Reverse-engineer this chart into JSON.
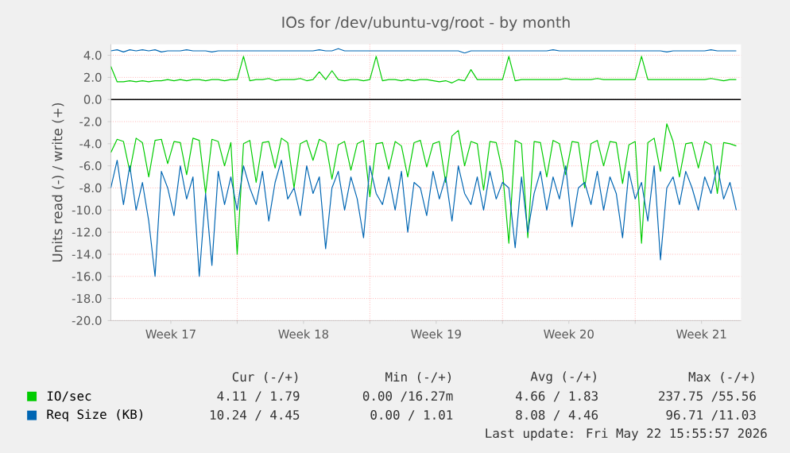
{
  "chart_data": {
    "type": "line",
    "title": "IOs for /dev/ubuntu-vg/root - by month",
    "ylabel": "Units read (-) / write (+)",
    "xlim": [
      "2026-04-20T08:00",
      "2026-05-23T14:00"
    ],
    "ylim": [
      -20,
      5
    ],
    "xticks": [
      {
        "value": "2026-04-23T12:00",
        "label": "Week 17"
      },
      {
        "value": "2026-04-27T00:00",
        "label": null
      },
      {
        "value": "2026-04-30T12:00",
        "label": "Week 18"
      },
      {
        "value": "2026-05-04T00:00",
        "label": null
      },
      {
        "value": "2026-05-07T12:00",
        "label": "Week 19"
      },
      {
        "value": "2026-05-11T00:00",
        "label": null
      },
      {
        "value": "2026-05-14T12:00",
        "label": "Week 20"
      },
      {
        "value": "2026-05-18T00:00",
        "label": null
      },
      {
        "value": "2026-05-21T12:00",
        "label": "Week 21"
      }
    ],
    "yticks": [
      {
        "value": -20,
        "label": "-20.0"
      },
      {
        "value": -18,
        "label": "-18.0"
      },
      {
        "value": -16,
        "label": "-16.0"
      },
      {
        "value": -14,
        "label": "-14.0"
      },
      {
        "value": -12,
        "label": "-12.0"
      },
      {
        "value": -10,
        "label": "-10.0"
      },
      {
        "value": -8,
        "label": "-8.0"
      },
      {
        "value": -6,
        "label": "-6.0"
      },
      {
        "value": -4,
        "label": "-4.0"
      },
      {
        "value": -2,
        "label": "-2.0"
      },
      {
        "value": 0,
        "label": "0.0"
      },
      {
        "value": 2,
        "label": "2.0"
      },
      {
        "value": 4,
        "label": "4.0"
      }
    ],
    "grid": true,
    "legend": "bottom",
    "marker": "none",
    "line_style": "solid",
    "ref_lines": [
      {
        "axis": "y",
        "value": 0,
        "color": "#000000"
      }
    ],
    "x": [
      "2026-04-20T08:00",
      "2026-04-20T16:00",
      "2026-04-21T00:00",
      "2026-04-21T08:00",
      "2026-04-21T16:00",
      "2026-04-22T00:00",
      "2026-04-22T08:00",
      "2026-04-22T16:00",
      "2026-04-23T00:00",
      "2026-04-23T08:00",
      "2026-04-23T16:00",
      "2026-04-24T00:00",
      "2026-04-24T08:00",
      "2026-04-24T16:00",
      "2026-04-25T00:00",
      "2026-04-25T08:00",
      "2026-04-25T16:00",
      "2026-04-26T00:00",
      "2026-04-26T08:00",
      "2026-04-26T16:00",
      "2026-04-27T00:00",
      "2026-04-27T08:00",
      "2026-04-27T16:00",
      "2026-04-28T00:00",
      "2026-04-28T08:00",
      "2026-04-28T16:00",
      "2026-04-29T00:00",
      "2026-04-29T08:00",
      "2026-04-29T16:00",
      "2026-04-30T00:00",
      "2026-04-30T08:00",
      "2026-04-30T16:00",
      "2026-05-01T00:00",
      "2026-05-01T08:00",
      "2026-05-01T16:00",
      "2026-05-02T00:00",
      "2026-05-02T08:00",
      "2026-05-02T16:00",
      "2026-05-03T00:00",
      "2026-05-03T08:00",
      "2026-05-03T16:00",
      "2026-05-04T00:00",
      "2026-05-04T08:00",
      "2026-05-04T16:00",
      "2026-05-05T00:00",
      "2026-05-05T08:00",
      "2026-05-05T16:00",
      "2026-05-06T00:00",
      "2026-05-06T08:00",
      "2026-05-06T16:00",
      "2026-05-07T00:00",
      "2026-05-07T08:00",
      "2026-05-07T16:00",
      "2026-05-08T00:00",
      "2026-05-08T08:00",
      "2026-05-08T16:00",
      "2026-05-09T00:00",
      "2026-05-09T08:00",
      "2026-05-09T16:00",
      "2026-05-10T00:00",
      "2026-05-10T08:00",
      "2026-05-10T16:00",
      "2026-05-11T00:00",
      "2026-05-11T08:00",
      "2026-05-11T16:00",
      "2026-05-12T00:00",
      "2026-05-12T08:00",
      "2026-05-12T16:00",
      "2026-05-13T00:00",
      "2026-05-13T08:00",
      "2026-05-13T16:00",
      "2026-05-14T00:00",
      "2026-05-14T08:00",
      "2026-05-14T16:00",
      "2026-05-15T00:00",
      "2026-05-15T08:00",
      "2026-05-15T16:00",
      "2026-05-16T00:00",
      "2026-05-16T08:00",
      "2026-05-16T16:00",
      "2026-05-17T00:00",
      "2026-05-17T08:00",
      "2026-05-17T16:00",
      "2026-05-18T00:00",
      "2026-05-18T08:00",
      "2026-05-18T16:00",
      "2026-05-19T00:00",
      "2026-05-19T08:00",
      "2026-05-19T16:00",
      "2026-05-20T00:00",
      "2026-05-20T08:00",
      "2026-05-20T16:00",
      "2026-05-21T00:00",
      "2026-05-21T08:00",
      "2026-05-21T16:00",
      "2026-05-22T00:00",
      "2026-05-22T08:00",
      "2026-05-22T16:00",
      "2026-05-23T00:00",
      "2026-05-23T08:00"
    ],
    "series": [
      {
        "name": "IO/sec",
        "color": "#00cc00",
        "values": [
          3.0,
          1.6,
          1.6,
          1.7,
          1.6,
          1.7,
          1.6,
          1.7,
          1.7,
          1.8,
          1.7,
          1.8,
          1.7,
          1.8,
          1.8,
          1.7,
          1.8,
          1.8,
          1.7,
          1.8,
          1.8,
          3.9,
          1.7,
          1.8,
          1.8,
          1.9,
          1.7,
          1.8,
          1.8,
          1.8,
          1.9,
          1.7,
          1.8,
          2.5,
          1.8,
          2.6,
          1.8,
          1.7,
          1.8,
          1.8,
          1.7,
          1.8,
          3.9,
          1.7,
          1.8,
          1.8,
          1.7,
          1.8,
          1.7,
          1.8,
          1.8,
          1.7,
          1.6,
          1.7,
          1.5,
          1.8,
          1.7,
          2.7,
          1.8,
          1.8,
          1.8,
          1.8,
          1.8,
          3.9,
          1.7,
          1.8,
          1.8,
          1.8,
          1.8,
          1.8,
          1.8,
          1.8,
          1.9,
          1.8,
          1.8,
          1.8,
          1.8,
          1.9,
          1.8,
          1.8,
          1.8,
          1.8,
          1.8,
          1.8,
          3.9,
          1.8,
          1.8,
          1.8,
          1.8,
          1.8,
          1.8,
          1.8,
          1.8,
          1.8,
          1.8,
          1.9,
          1.8,
          1.7,
          1.8,
          1.8
        ]
      },
      {
        "color": "#00cc00",
        "values": [
          -4.8,
          -3.6,
          -3.8,
          -6.5,
          -3.5,
          -3.9,
          -7.0,
          -3.7,
          -3.6,
          -5.8,
          -3.8,
          -3.9,
          -6.8,
          -3.5,
          -3.7,
          -8.5,
          -3.6,
          -3.8,
          -6.0,
          -3.9,
          -14.0,
          -4.0,
          -3.7,
          -7.5,
          -3.9,
          -3.8,
          -6.2,
          -3.5,
          -3.9,
          -8.0,
          -4.0,
          -3.7,
          -5.5,
          -3.6,
          -3.9,
          -7.2,
          -4.1,
          -3.8,
          -6.4,
          -4.0,
          -3.7,
          -8.8,
          -4.0,
          -3.9,
          -6.3,
          -3.8,
          -4.2,
          -7.0,
          -3.9,
          -3.7,
          -6.1,
          -4.0,
          -3.8,
          -7.5,
          -3.3,
          -2.8,
          -6.0,
          -3.8,
          -4.0,
          -8.2,
          -3.8,
          -3.9,
          -6.5,
          -13.0,
          -3.7,
          -4.0,
          -12.5,
          -3.8,
          -3.9,
          -7.0,
          -3.7,
          -4.0,
          -6.8,
          -3.8,
          -3.9,
          -8.0,
          -4.0,
          -3.7,
          -6.0,
          -3.8,
          -3.9,
          -7.6,
          -4.1,
          -3.8,
          -13.0,
          -3.9,
          -3.5,
          -6.5,
          -2.2,
          -3.8,
          -7.0,
          -4.0,
          -3.9,
          -6.2,
          -3.8,
          -4.1,
          -8.5,
          -3.9,
          -4.0,
          -4.2
        ]
      },
      {
        "name": "Req Size (KB)",
        "color": "#0066b3",
        "values": [
          4.4,
          4.5,
          4.3,
          4.5,
          4.4,
          4.5,
          4.4,
          4.5,
          4.3,
          4.4,
          4.4,
          4.4,
          4.5,
          4.4,
          4.4,
          4.4,
          4.3,
          4.4,
          4.4,
          4.4,
          4.4,
          4.4,
          4.4,
          4.4,
          4.4,
          4.4,
          4.4,
          4.4,
          4.4,
          4.4,
          4.4,
          4.4,
          4.4,
          4.5,
          4.4,
          4.4,
          4.6,
          4.4,
          4.4,
          4.4,
          4.4,
          4.4,
          4.4,
          4.4,
          4.4,
          4.4,
          4.4,
          4.4,
          4.4,
          4.4,
          4.4,
          4.4,
          4.4,
          4.4,
          4.4,
          4.4,
          4.2,
          4.4,
          4.4,
          4.4,
          4.4,
          4.4,
          4.4,
          4.4,
          4.4,
          4.4,
          4.4,
          4.4,
          4.4,
          4.4,
          4.5,
          4.4,
          4.4,
          4.4,
          4.4,
          4.4,
          4.4,
          4.4,
          4.4,
          4.4,
          4.4,
          4.4,
          4.4,
          4.4,
          4.4,
          4.4,
          4.4,
          4.4,
          4.3,
          4.4,
          4.4,
          4.4,
          4.4,
          4.4,
          4.4,
          4.5,
          4.4,
          4.4,
          4.4,
          4.4
        ]
      },
      {
        "color": "#0066b3",
        "values": [
          -8.0,
          -5.5,
          -9.5,
          -6.0,
          -10.0,
          -7.5,
          -11.0,
          -16.0,
          -6.5,
          -8.0,
          -10.5,
          -6.0,
          -9.0,
          -7.0,
          -16.0,
          -8.5,
          -15.0,
          -6.5,
          -9.5,
          -7.0,
          -10.0,
          -6.0,
          -8.0,
          -9.5,
          -6.5,
          -11.0,
          -7.5,
          -5.5,
          -9.0,
          -8.0,
          -10.5,
          -6.0,
          -8.5,
          -7.0,
          -13.5,
          -8.0,
          -6.5,
          -10.0,
          -7.0,
          -9.0,
          -12.5,
          -6.0,
          -8.5,
          -9.5,
          -7.0,
          -10.0,
          -6.5,
          -12.0,
          -7.5,
          -8.0,
          -10.5,
          -6.5,
          -9.0,
          -7.0,
          -11.0,
          -6.0,
          -8.5,
          -9.5,
          -7.0,
          -10.0,
          -6.5,
          -9.0,
          -7.5,
          -8.0,
          -13.4,
          -7.0,
          -12.0,
          -8.5,
          -6.5,
          -10.0,
          -7.0,
          -9.0,
          -6.0,
          -11.5,
          -8.0,
          -7.5,
          -9.5,
          -6.5,
          -10.0,
          -7.0,
          -8.5,
          -12.5,
          -6.5,
          -9.0,
          -7.5,
          -11.0,
          -6.0,
          -14.5,
          -8.0,
          -7.0,
          -9.5,
          -6.5,
          -8.0,
          -10.0,
          -7.0,
          -8.5,
          -6.0,
          -9.0,
          -7.5,
          -10.0
        ]
      }
    ],
    "annotations": [
      "Cur (-/+)",
      "Min (-/+)",
      "Avg (-/+)",
      "Max (-/+)",
      "4.11 / 1.79",
      "0.00 /16.27m",
      "4.66 / 1.83",
      "237.75 /55.56",
      "10.24 / 4.45",
      "0.00 / 1.01",
      "8.08 / 4.46",
      "96.71 /11.03",
      "Last update: Fri May 22 15:55:57 2026"
    ]
  }
}
